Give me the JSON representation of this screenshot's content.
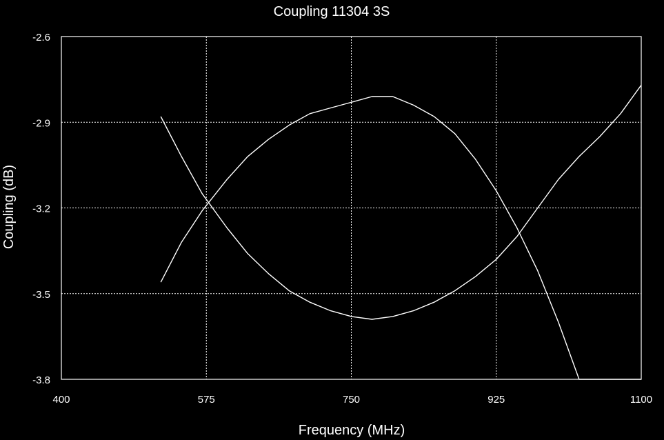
{
  "chart_data": {
    "type": "line",
    "title": "Coupling 11304 3S",
    "xlabel": "Frequency (MHz)",
    "ylabel": "Coupling (dB)",
    "xlim": [
      400,
      1100
    ],
    "ylim": [
      -3.8,
      -2.6
    ],
    "x_ticks": [
      "400",
      "575",
      "750",
      "925",
      "1100"
    ],
    "y_ticks": [
      "-2.6",
      "-2.9",
      "-3.2",
      "-3.5",
      "-3.8"
    ],
    "x_tick_values": [
      400,
      575,
      750,
      925,
      1100
    ],
    "y_tick_values": [
      -2.6,
      -2.9,
      -3.2,
      -3.5,
      -3.8
    ],
    "grid": true,
    "colors": {
      "background": "#000000",
      "line": "#ffffff",
      "grid": "#ffffff"
    },
    "series": [
      {
        "x": [
          520,
          545,
          570,
          600,
          625,
          650,
          675,
          700,
          725,
          750,
          775,
          800,
          825,
          850,
          875,
          900,
          925,
          950,
          975,
          1000,
          1025,
          1050,
          1075,
          1100
        ],
        "y": [
          -3.46,
          -3.32,
          -3.21,
          -3.1,
          -3.02,
          -2.96,
          -2.91,
          -2.87,
          -2.85,
          -2.83,
          -2.81,
          -2.81,
          -2.84,
          -2.88,
          -2.94,
          -3.03,
          -3.14,
          -3.27,
          -3.42,
          -3.6,
          -3.8,
          -3.8,
          -3.8,
          -3.8
        ]
      },
      {
        "x": [
          520,
          545,
          570,
          600,
          625,
          650,
          675,
          700,
          725,
          750,
          775,
          800,
          825,
          850,
          875,
          900,
          925,
          950,
          975,
          1000,
          1025,
          1050,
          1075,
          1100
        ],
        "y": [
          -2.88,
          -3.02,
          -3.15,
          -3.27,
          -3.36,
          -3.43,
          -3.49,
          -3.53,
          -3.56,
          -3.58,
          -3.59,
          -3.58,
          -3.56,
          -3.53,
          -3.49,
          -3.44,
          -3.38,
          -3.3,
          -3.2,
          -3.1,
          -3.02,
          -2.95,
          -2.87,
          -2.77
        ]
      }
    ]
  }
}
